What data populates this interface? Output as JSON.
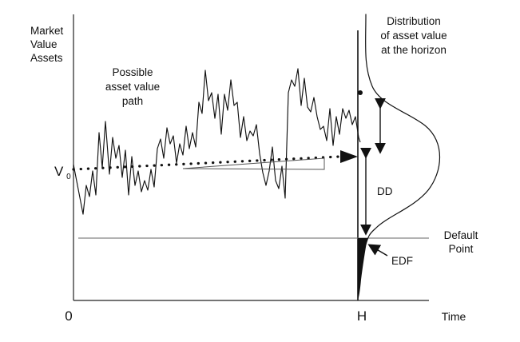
{
  "diagram": {
    "labels": {
      "y_axis_line1": "Market",
      "y_axis_line2": "Value",
      "y_axis_line3": "Assets",
      "path_line1": "Possible",
      "path_line2": "asset value",
      "path_line3": "path",
      "distribution_line1": "Distribution",
      "distribution_line2": "of asset value",
      "distribution_line3": "at the horizon",
      "v0_main": "V",
      "v0_sub": "0",
      "dd": "DD",
      "default_line1": "Default",
      "default_line2": "Point",
      "edf": "EDF",
      "origin": "0",
      "horizon": "H",
      "time": "Time"
    },
    "colors": {
      "ink": "#111111",
      "axis": "#222222",
      "default_line": "#666666",
      "background": "#ffffff"
    }
  }
}
